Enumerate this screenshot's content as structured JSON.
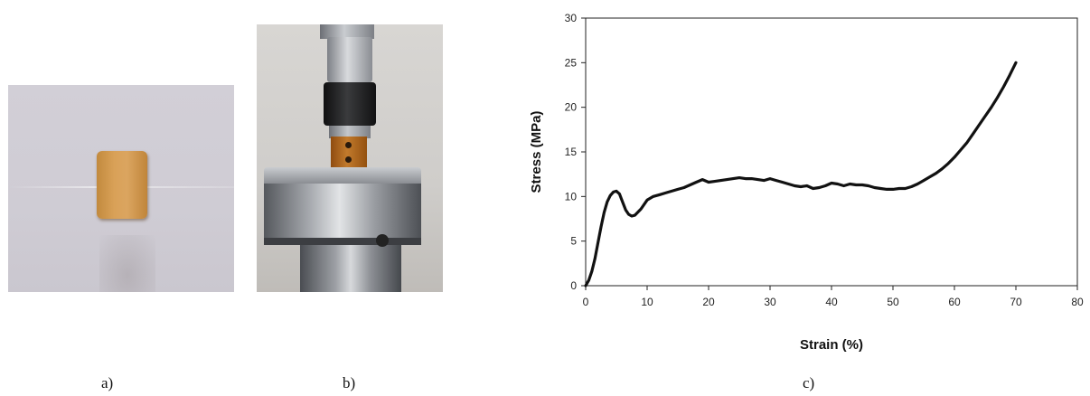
{
  "captions": {
    "a": "a)",
    "b": "b)",
    "c": "c)"
  },
  "photos": {
    "a": {
      "subject": "foam specimen on paper",
      "colors": {
        "background": "#d0cdd5",
        "specimen": "#d49a52"
      }
    },
    "b": {
      "subject": "specimen in compression test fixture",
      "colors": {
        "steel": "#8a8d93",
        "specimen": "#b26a1f",
        "background": "#d6d4d1"
      }
    }
  },
  "chart_data": {
    "type": "line",
    "title": "",
    "xlabel": "Strain (%)",
    "ylabel": "Stress (MPa)",
    "xlim": [
      0,
      80
    ],
    "ylim": [
      0,
      30
    ],
    "xticks": [
      0,
      10,
      20,
      30,
      40,
      50,
      60,
      70,
      80
    ],
    "yticks": [
      0,
      5,
      10,
      15,
      20,
      25,
      30
    ],
    "grid": false,
    "legend": "none",
    "line_color": "#111111",
    "series": [
      {
        "x": [
          0,
          0.5,
          1,
          1.5,
          2,
          2.5,
          3,
          3.5,
          4,
          4.5,
          5,
          5.5,
          6,
          6.5,
          7,
          7.5,
          8,
          9,
          10,
          11,
          12,
          13,
          14,
          15,
          16,
          17,
          18,
          19,
          20,
          21,
          22,
          23,
          24,
          25,
          26,
          27,
          28,
          29,
          30,
          31,
          32,
          33,
          34,
          35,
          36,
          37,
          38,
          39,
          40,
          41,
          42,
          43,
          44,
          45,
          46,
          47,
          48,
          49,
          50,
          51,
          52,
          53,
          54,
          55,
          56,
          57,
          58,
          59,
          60,
          61,
          62,
          63,
          64,
          65,
          66,
          67,
          68,
          69,
          70
        ],
        "y": [
          0,
          0.6,
          1.6,
          3.0,
          4.8,
          6.6,
          8.2,
          9.4,
          10.1,
          10.5,
          10.6,
          10.3,
          9.4,
          8.5,
          8.0,
          7.8,
          7.9,
          8.6,
          9.6,
          10.0,
          10.2,
          10.4,
          10.6,
          10.8,
          11.0,
          11.3,
          11.6,
          11.9,
          11.6,
          11.7,
          11.8,
          11.9,
          12.0,
          12.1,
          12.0,
          12.0,
          11.9,
          11.8,
          12.0,
          11.8,
          11.6,
          11.4,
          11.2,
          11.1,
          11.2,
          10.9,
          11.0,
          11.2,
          11.5,
          11.4,
          11.2,
          11.4,
          11.3,
          11.3,
          11.2,
          11.0,
          10.9,
          10.8,
          10.8,
          10.9,
          10.9,
          11.1,
          11.4,
          11.8,
          12.2,
          12.6,
          13.1,
          13.7,
          14.4,
          15.2,
          16.0,
          17.0,
          18.0,
          19.0,
          20.0,
          21.1,
          22.3,
          23.6,
          25.0
        ]
      }
    ]
  }
}
